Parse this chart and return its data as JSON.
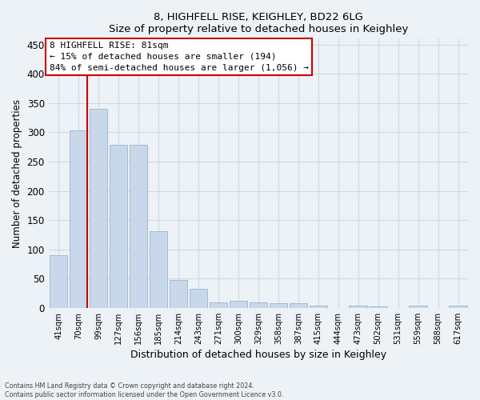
{
  "title1": "8, HIGHFELL RISE, KEIGHLEY, BD22 6LG",
  "title2": "Size of property relative to detached houses in Keighley",
  "xlabel": "Distribution of detached houses by size in Keighley",
  "ylabel": "Number of detached properties",
  "categories": [
    "41sqm",
    "70sqm",
    "99sqm",
    "127sqm",
    "156sqm",
    "185sqm",
    "214sqm",
    "243sqm",
    "271sqm",
    "300sqm",
    "329sqm",
    "358sqm",
    "387sqm",
    "415sqm",
    "444sqm",
    "473sqm",
    "502sqm",
    "531sqm",
    "559sqm",
    "588sqm",
    "617sqm"
  ],
  "values": [
    90,
    303,
    340,
    278,
    278,
    131,
    47,
    33,
    10,
    12,
    9,
    8,
    8,
    4,
    0,
    4,
    3,
    0,
    4,
    0,
    4
  ],
  "bar_color": "#c8d8ea",
  "bar_edge_color": "#9ab4cc",
  "vline_x": 1.42,
  "vline_color": "#cc0000",
  "annotation_line1": "8 HIGHFELL RISE: 81sqm",
  "annotation_line2": "← 15% of detached houses are smaller (194)",
  "annotation_line3": "84% of semi-detached houses are larger (1,056) →",
  "ylim_max": 460,
  "yticks": [
    0,
    50,
    100,
    150,
    200,
    250,
    300,
    350,
    400,
    450
  ],
  "footer1": "Contains HM Land Registry data © Crown copyright and database right 2024.",
  "footer2": "Contains public sector information licensed under the Open Government Licence v3.0.",
  "bg_color": "#edf2f7",
  "grid_color": "#d0d8e4"
}
